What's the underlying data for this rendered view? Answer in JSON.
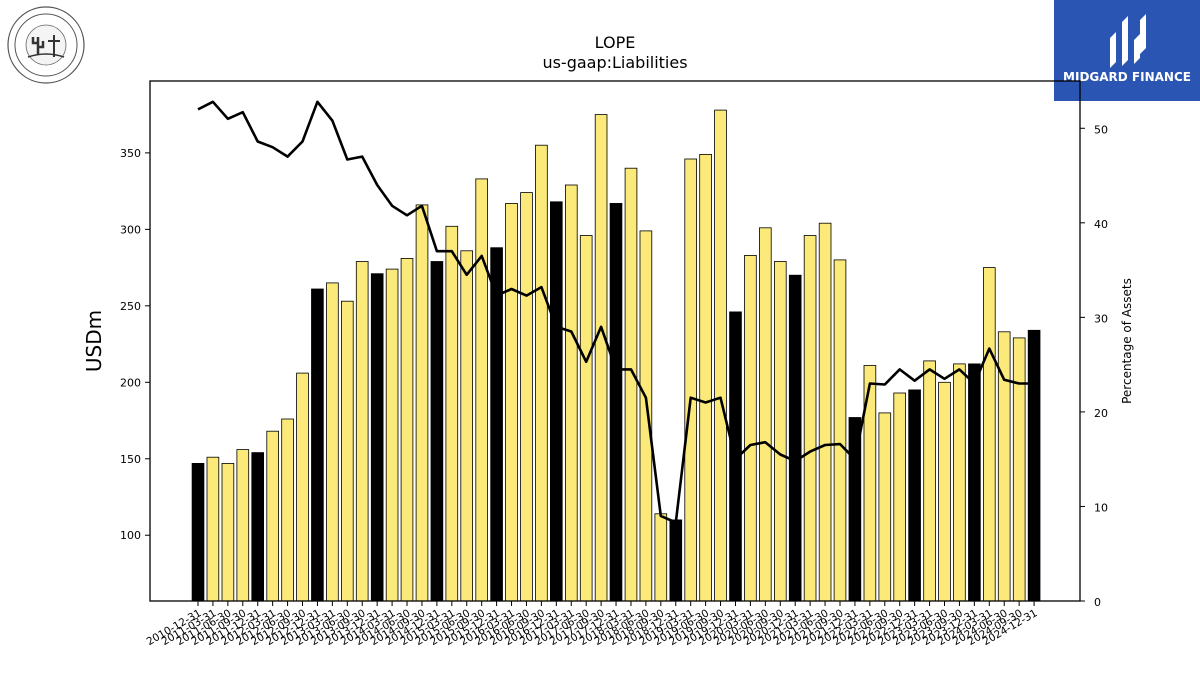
{
  "header": {
    "title": "LOPE",
    "subtitle": "us-gaap:Liabilities"
  },
  "logos": {
    "left_name": "Grand Canyon University seal",
    "right_text": "MIDGARD FINANCE",
    "right_color": "#2b55b3"
  },
  "chart_data": {
    "type": "bar",
    "title": "LOPE",
    "subtitle": "us-gaap:Liabilities",
    "ylabel": "USDm",
    "y2label": "Percentage of Assets",
    "ylim": [
      57,
      397
    ],
    "y2lim": [
      0,
      55
    ],
    "yticks": [
      100,
      150,
      200,
      250,
      300,
      350
    ],
    "y2ticks": [
      0,
      10,
      20,
      30,
      40,
      50
    ],
    "colors": {
      "annual": "#000000",
      "quarterly": "#fbe97a",
      "line": "#000000"
    },
    "categories": [
      "2010-12-31",
      "2011-03-31",
      "2011-06-30",
      "2011-09-30",
      "2011-12-31",
      "2012-03-31",
      "2012-06-30",
      "2012-09-30",
      "2012-12-31",
      "2013-03-31",
      "2013-06-30",
      "2013-09-30",
      "2013-12-31",
      "2014-03-31",
      "2014-06-30",
      "2014-09-30",
      "2014-12-31",
      "2015-03-31",
      "2015-06-30",
      "2015-09-30",
      "2015-12-31",
      "2016-03-31",
      "2016-06-30",
      "2016-09-30",
      "2016-12-31",
      "2017-03-31",
      "2017-06-30",
      "2017-09-30",
      "2017-12-31",
      "2018-03-31",
      "2018-06-30",
      "2018-09-30",
      "2018-12-31",
      "2019-03-31",
      "2019-06-30",
      "2019-09-30",
      "2019-12-31",
      "2020-03-31",
      "2020-06-30",
      "2020-09-30",
      "2020-12-31",
      "2021-03-31",
      "2021-06-30",
      "2021-09-30",
      "2021-12-31",
      "2022-03-31",
      "2022-06-30",
      "2022-09-30",
      "2022-12-31",
      "2023-03-31",
      "2023-06-30",
      "2023-09-30",
      "2023-12-31",
      "2024-03-31",
      "2024-06-30",
      "2024-09-30",
      "2024-12-31"
    ],
    "series": [
      {
        "values": [
          147,
          151,
          147,
          156,
          154,
          168,
          176,
          206,
          261,
          265,
          253,
          279,
          271,
          274,
          281,
          316,
          279,
          302,
          286,
          333,
          288,
          317,
          324,
          355,
          318,
          329,
          296,
          375,
          317,
          340,
          299,
          114,
          110,
          346,
          349,
          378,
          246,
          283,
          301,
          279,
          270,
          296,
          304,
          280,
          177,
          211,
          180,
          193,
          195,
          214,
          200,
          212,
          212,
          275,
          233,
          229,
          234
        ],
        "annual": [
          true,
          false,
          false,
          false,
          true,
          false,
          false,
          false,
          true,
          false,
          false,
          false,
          true,
          false,
          false,
          false,
          true,
          false,
          false,
          false,
          true,
          false,
          false,
          false,
          true,
          false,
          false,
          false,
          true,
          false,
          false,
          false,
          true,
          false,
          false,
          false,
          true,
          false,
          false,
          false,
          true,
          false,
          false,
          false,
          true,
          false,
          false,
          false,
          true,
          false,
          false,
          false,
          true,
          false,
          false,
          false,
          true
        ]
      },
      {
        "axis": "right",
        "values": [
          52.0,
          52.8,
          51.0,
          51.7,
          48.6,
          48.0,
          47.0,
          48.6,
          52.8,
          50.8,
          46.7,
          47.0,
          44.0,
          41.8,
          40.8,
          41.8,
          37.0,
          37.0,
          34.5,
          36.5,
          32.3,
          33.0,
          32.3,
          33.2,
          29.0,
          28.5,
          25.3,
          29.0,
          24.5,
          24.5,
          21.5,
          9.0,
          8.3,
          21.5,
          21.0,
          21.5,
          15.0,
          16.5,
          16.8,
          15.5,
          14.8,
          15.8,
          16.5,
          16.6,
          15.0,
          23.0,
          22.9,
          24.5,
          23.3,
          24.5,
          23.5,
          24.5,
          23.0,
          26.7,
          23.4,
          23.0,
          23.0
        ]
      }
    ]
  }
}
